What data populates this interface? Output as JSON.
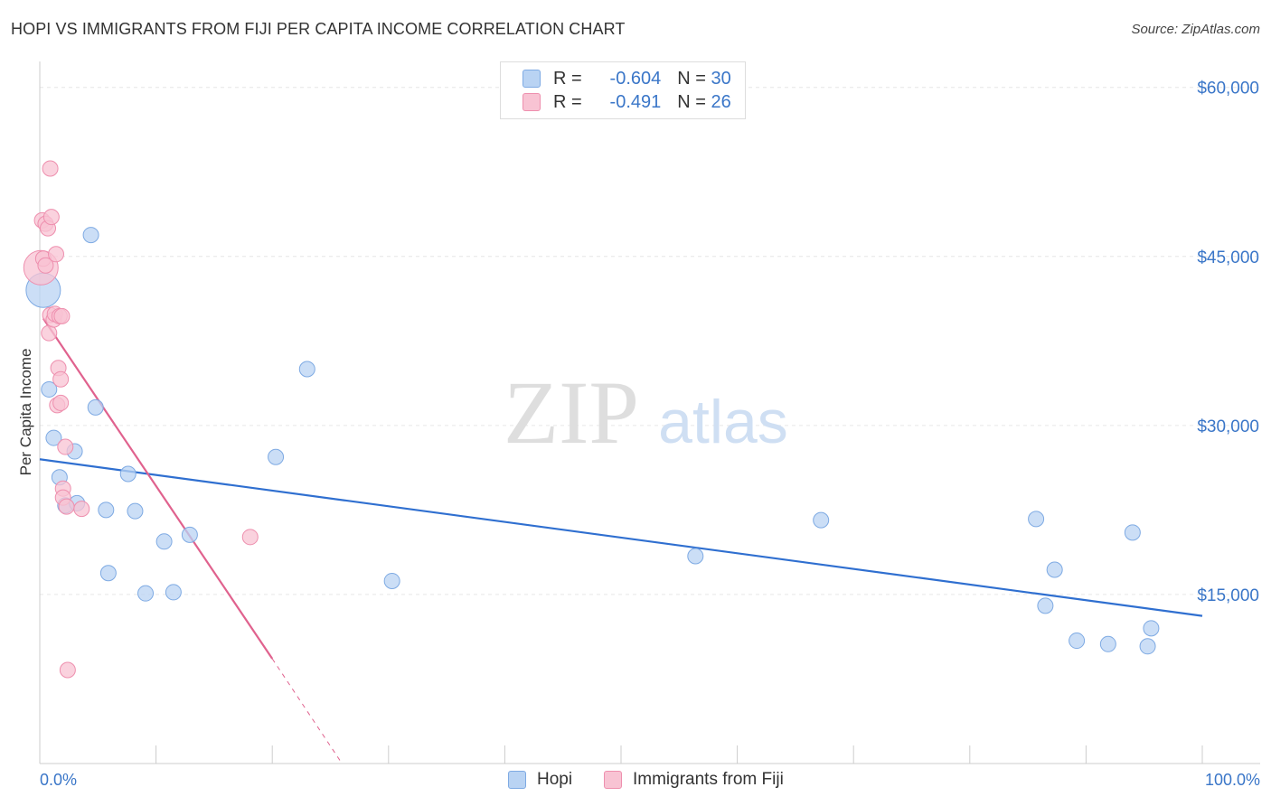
{
  "title": "HOPI VS IMMIGRANTS FROM FIJI PER CAPITA INCOME CORRELATION CHART",
  "source": "Source: ZipAtlas.com",
  "watermark": {
    "zip": "ZIP",
    "atlas": "atlas"
  },
  "colors": {
    "hopi_fill": "#b9d3f3",
    "hopi_stroke": "#7eaae3",
    "hopi_line": "#2f6fd0",
    "fiji_fill": "#f8c3d3",
    "fiji_stroke": "#ee8fae",
    "fiji_line": "#e0628e",
    "axis_text": "#3a76c8",
    "grid": "#e6e6e6"
  },
  "legend": {
    "hopi": {
      "r_label": "R =",
      "r_value": "-0.604",
      "n_label": "N =",
      "n_value": "30"
    },
    "fiji": {
      "r_label": "R =",
      "r_value": "-0.491",
      "n_label": "N =",
      "n_value": "26"
    }
  },
  "bottom_legend": {
    "hopi": "Hopi",
    "fiji": "Immigrants from Fiji"
  },
  "chart_data": {
    "type": "scatter",
    "title": "HOPI VS IMMIGRANTS FROM FIJI PER CAPITA INCOME CORRELATION CHART",
    "xlabel": "",
    "ylabel": "Per Capita Income",
    "xlim": [
      0,
      100
    ],
    "ylim": [
      0,
      61500
    ],
    "x_tick_labels": {
      "left": "0.0%",
      "right": "100.0%"
    },
    "y_ticks": [
      {
        "value": 15000,
        "label": "$15,000"
      },
      {
        "value": 30000,
        "label": "$30,000"
      },
      {
        "value": 45000,
        "label": "$45,000"
      },
      {
        "value": 60000,
        "label": "$60,000"
      }
    ],
    "series": [
      {
        "name": "Hopi",
        "r": -0.604,
        "n": 30,
        "trend": {
          "x0": 0,
          "y0": 27000,
          "x1": 100,
          "y1": 13100
        },
        "points": [
          {
            "x": 0.3,
            "y": 42000,
            "big": true
          },
          {
            "x": 0.8,
            "y": 33200
          },
          {
            "x": 1.2,
            "y": 28900
          },
          {
            "x": 1.7,
            "y": 25400
          },
          {
            "x": 2.2,
            "y": 22900
          },
          {
            "x": 3.0,
            "y": 27700
          },
          {
            "x": 3.2,
            "y": 23100
          },
          {
            "x": 4.4,
            "y": 46900
          },
          {
            "x": 4.8,
            "y": 31600
          },
          {
            "x": 5.7,
            "y": 22500
          },
          {
            "x": 5.9,
            "y": 16900
          },
          {
            "x": 7.6,
            "y": 25700
          },
          {
            "x": 8.2,
            "y": 22400
          },
          {
            "x": 9.1,
            "y": 15100
          },
          {
            "x": 10.7,
            "y": 19700
          },
          {
            "x": 11.5,
            "y": 15200
          },
          {
            "x": 12.9,
            "y": 20300
          },
          {
            "x": 20.3,
            "y": 27200
          },
          {
            "x": 23.0,
            "y": 35000
          },
          {
            "x": 30.3,
            "y": 16200
          },
          {
            "x": 56.4,
            "y": 18400
          },
          {
            "x": 67.2,
            "y": 21600
          },
          {
            "x": 85.7,
            "y": 21700
          },
          {
            "x": 86.5,
            "y": 14000
          },
          {
            "x": 87.3,
            "y": 17200
          },
          {
            "x": 89.2,
            "y": 10900
          },
          {
            "x": 91.9,
            "y": 10600
          },
          {
            "x": 94.0,
            "y": 20500
          },
          {
            "x": 95.3,
            "y": 10400
          },
          {
            "x": 95.6,
            "y": 12000
          }
        ]
      },
      {
        "name": "Immigrants from Fiji",
        "r": -0.491,
        "n": 26,
        "trend": {
          "x0": 0.3,
          "y0": 39500,
          "x1": 20.0,
          "y1": 9300
        },
        "trend_dashed": {
          "x0": 20.0,
          "y0": 9300,
          "x1": 26.0,
          "y1": 0
        },
        "points": [
          {
            "x": 0.1,
            "y": 44000,
            "big": true
          },
          {
            "x": 0.2,
            "y": 48200
          },
          {
            "x": 0.3,
            "y": 44800
          },
          {
            "x": 0.5,
            "y": 47900
          },
          {
            "x": 0.5,
            "y": 44200
          },
          {
            "x": 0.7,
            "y": 47500
          },
          {
            "x": 0.8,
            "y": 38200
          },
          {
            "x": 0.9,
            "y": 39800
          },
          {
            "x": 0.9,
            "y": 52800
          },
          {
            "x": 1.0,
            "y": 48500
          },
          {
            "x": 1.2,
            "y": 39400
          },
          {
            "x": 1.3,
            "y": 39900
          },
          {
            "x": 1.4,
            "y": 45200
          },
          {
            "x": 1.5,
            "y": 31800
          },
          {
            "x": 1.6,
            "y": 35100
          },
          {
            "x": 1.7,
            "y": 39700
          },
          {
            "x": 1.8,
            "y": 32000
          },
          {
            "x": 1.8,
            "y": 34100
          },
          {
            "x": 1.9,
            "y": 39700
          },
          {
            "x": 2.0,
            "y": 24400
          },
          {
            "x": 2.0,
            "y": 23600
          },
          {
            "x": 2.2,
            "y": 28100
          },
          {
            "x": 2.3,
            "y": 22800
          },
          {
            "x": 2.4,
            "y": 8300
          },
          {
            "x": 3.6,
            "y": 22600
          },
          {
            "x": 18.1,
            "y": 20100
          }
        ]
      }
    ]
  }
}
